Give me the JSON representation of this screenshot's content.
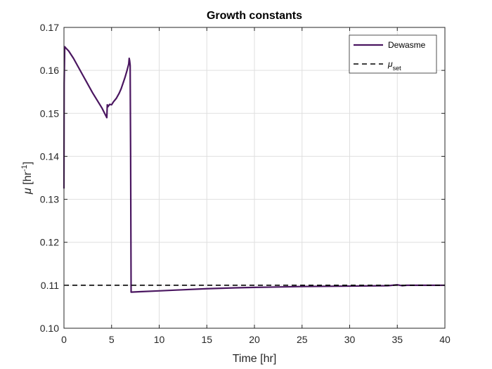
{
  "chart_data": {
    "type": "line",
    "title": "Growth constants",
    "xlabel": "Time [hr]",
    "ylabel": {
      "symbol": "μ",
      "unit_open": " [hr",
      "unit_exp": "-1",
      "unit_close": "]"
    },
    "xlim": [
      0,
      40
    ],
    "ylim": [
      0.1,
      0.17
    ],
    "xticks": [
      0,
      5,
      10,
      15,
      20,
      25,
      30,
      35,
      40
    ],
    "yticks": [
      0.1,
      0.11,
      0.12,
      0.13,
      0.14,
      0.15,
      0.16,
      0.17
    ],
    "grid": true,
    "legend_position": "top-right",
    "series": [
      {
        "name": "Dewasme",
        "legend_label": {
          "text": "Dewasme"
        },
        "color": "#4a1660",
        "style": "solid",
        "x": [
          0,
          0.02,
          0.08,
          0.2,
          0.5,
          1.0,
          1.5,
          2.0,
          2.5,
          3.0,
          3.5,
          4.0,
          4.5,
          4.55,
          4.6,
          4.8,
          5.0,
          5.2,
          5.5,
          5.8,
          6.0,
          6.2,
          6.4,
          6.6,
          6.8,
          6.85,
          6.9,
          6.95,
          7.0,
          7.05,
          8,
          10,
          12,
          15,
          18,
          20,
          25,
          30,
          34,
          35,
          35.5,
          36,
          40
        ],
        "y": [
          0.1325,
          0.157,
          0.1655,
          0.1652,
          0.1645,
          0.1628,
          0.1608,
          0.1588,
          0.1568,
          0.1548,
          0.153,
          0.1512,
          0.149,
          0.152,
          0.1515,
          0.1521,
          0.152,
          0.1527,
          0.1535,
          0.1547,
          0.1557,
          0.157,
          0.1583,
          0.1598,
          0.1615,
          0.1628,
          0.1622,
          0.1612,
          0.14,
          0.1084,
          0.1085,
          0.1087,
          0.1089,
          0.1092,
          0.1094,
          0.1095,
          0.1097,
          0.1098,
          0.1099,
          0.1101,
          0.1099,
          0.11,
          0.11
        ]
      },
      {
        "name": "μset",
        "legend_label": {
          "symbol": "μ",
          "subscript": "set"
        },
        "color": "#000000",
        "style": "dashed",
        "x": [
          0,
          40
        ],
        "y": [
          0.11,
          0.11
        ]
      }
    ]
  }
}
